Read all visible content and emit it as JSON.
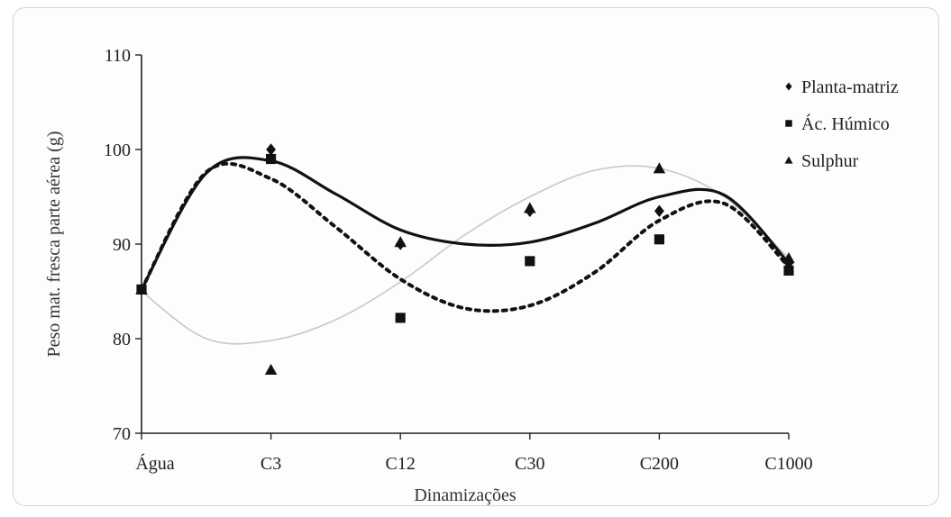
{
  "chart_data": {
    "type": "scatter",
    "xlabel": "Dinamizações",
    "ylabel": "Peso mat. fresca parte aérea (g)",
    "categories": [
      "Água",
      "C3",
      "C12",
      "C30",
      "C200",
      "C1000"
    ],
    "ylim": [
      70,
      110
    ],
    "yticks": [
      70,
      80,
      90,
      100,
      110
    ],
    "grid": false,
    "legend_position": "top-right",
    "series": [
      {
        "name": "Planta-matriz",
        "marker": "diamond",
        "values": [
          85.2,
          100.0,
          90.0,
          93.5,
          93.5,
          88.0
        ],
        "trend": {
          "style": "solid",
          "color": "#111111",
          "values": [
            85.2,
            98.8,
            91.5,
            90.2,
            95.0,
            88.0
          ],
          "extra": [
            [
              0.5,
              97.5
            ],
            [
              1.5,
              95.3
            ],
            [
              2.5,
              90.0
            ],
            [
              3.5,
              92.2
            ],
            [
              4.5,
              95.2
            ]
          ]
        }
      },
      {
        "name": "Ác. Húmico",
        "marker": "square",
        "values": [
          85.2,
          99.0,
          82.2,
          88.2,
          90.5,
          87.2
        ],
        "trend": {
          "style": "dotted",
          "color": "#111111",
          "values": [
            85.2,
            96.9,
            86.3,
            83.5,
            92.5,
            87.6
          ],
          "extra": [
            [
              0.5,
              97.6
            ],
            [
              1.5,
              91.8
            ],
            [
              2.5,
              83.2
            ],
            [
              3.5,
              87.0
            ],
            [
              4.5,
              94.3
            ]
          ]
        }
      },
      {
        "name": "Sulphur",
        "marker": "triangle",
        "values": [
          85.2,
          76.7,
          90.2,
          93.8,
          98.0,
          88.5
        ],
        "trend": {
          "style": "solid",
          "color": "#c8c8c8",
          "values": [
            85.0,
            79.8,
            86.0,
            95.0,
            98.0,
            88.5
          ],
          "extra": [
            [
              0.5,
              80.0
            ],
            [
              1.5,
              82.0
            ],
            [
              2.5,
              91.0
            ],
            [
              3.5,
              97.8
            ],
            [
              4.5,
              95.0
            ]
          ]
        }
      }
    ]
  }
}
